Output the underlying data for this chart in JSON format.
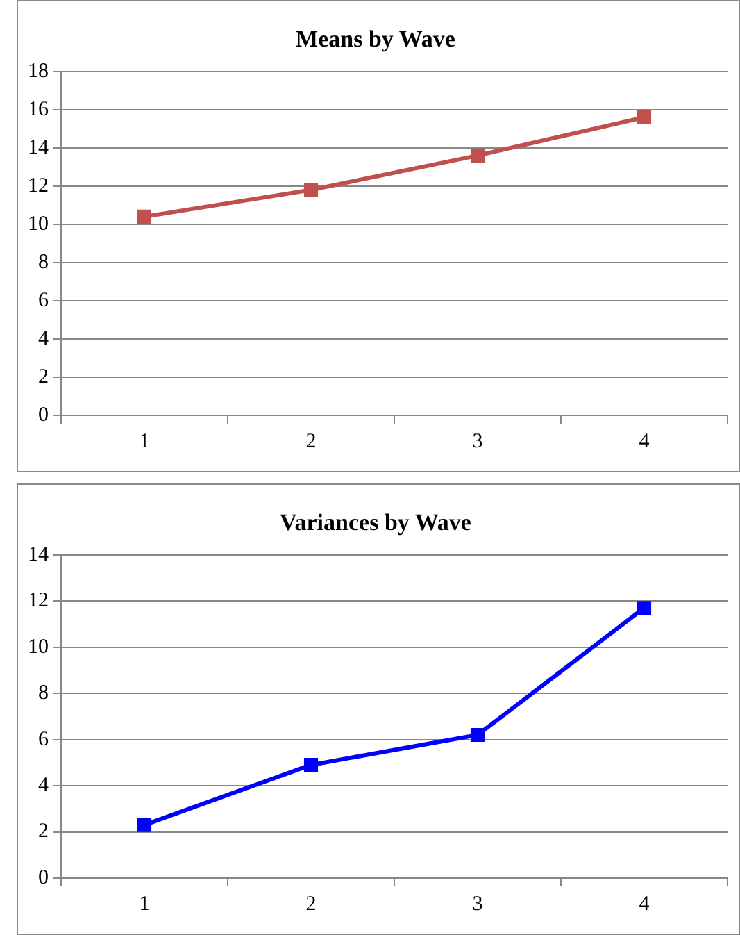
{
  "chart_data": [
    {
      "type": "line",
      "title": "Means by Wave",
      "categories": [
        "1",
        "2",
        "3",
        "4"
      ],
      "series": [
        {
          "color": "#c0504d",
          "values": [
            10.4,
            11.8,
            13.6,
            15.6
          ]
        }
      ],
      "ylim": [
        0,
        18
      ],
      "yticks": [
        0,
        2,
        4,
        6,
        8,
        10,
        12,
        14,
        16,
        18
      ],
      "grid": "y",
      "legend": false,
      "marker": "square",
      "line_style": "solid"
    },
    {
      "type": "line",
      "title": "Variances by Wave",
      "categories": [
        "1",
        "2",
        "3",
        "4"
      ],
      "series": [
        {
          "color": "#0000ff",
          "values": [
            2.3,
            4.9,
            6.2,
            11.7
          ]
        }
      ],
      "ylim": [
        0,
        14
      ],
      "yticks": [
        0,
        2,
        4,
        6,
        8,
        10,
        12,
        14
      ],
      "grid": "y",
      "legend": false,
      "marker": "square",
      "line_style": "solid"
    }
  ]
}
